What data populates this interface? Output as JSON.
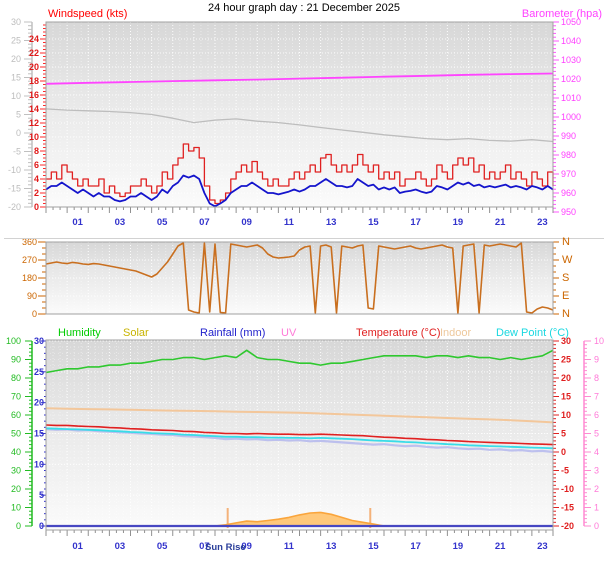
{
  "title": "24 hour graph day : 21 December 2025",
  "top_panel": {
    "left_label": "Windspeed (kts)",
    "right_label": "Barometer (hpa)"
  },
  "legend": {
    "items": [
      {
        "label": "Humidity",
        "color": "#00cc00"
      },
      {
        "label": "Solar",
        "color": "#c8b400"
      },
      {
        "label": "Rainfall (mm)",
        "color": "#2222cc"
      },
      {
        "label": "UV",
        "color": "#ff7ad8"
      },
      {
        "label": "Temperature (°C)",
        "color": "#e02020"
      },
      {
        "label": "Indoor",
        "color": "#eec89c"
      },
      {
        "label": "Dew Point (°C)",
        "color": "#1ad8e0"
      }
    ]
  },
  "chart_data": [
    {
      "id": "windspeed_barometer",
      "type": "line",
      "x_range": [
        0,
        24
      ],
      "x_tick_labels": [
        "01",
        "03",
        "05",
        "07",
        "09",
        "11",
        "13",
        "15",
        "17",
        "19",
        "21",
        "23"
      ],
      "axes": {
        "windspeed": {
          "title": "Windspeed (kts)",
          "min": 0,
          "max": 24,
          "major": 2,
          "minor": 0.5,
          "color": "#ff2828",
          "label_color": "#e01818"
        },
        "outer_left": {
          "title": "",
          "min": -20,
          "max": 30,
          "major": 5,
          "minor": 1,
          "color": "#c0c0c0",
          "label_color": "#bdbdbd"
        },
        "barometer": {
          "title": "Barometer (hpa)",
          "min": 950,
          "max": 1050,
          "major": 10,
          "minor": 2,
          "color": "#ff55ff",
          "label_color": "#ff40ff"
        }
      },
      "series": [
        {
          "name": "unlabeled_gray_line",
          "axis": "outer_left",
          "color": "#bdbdbd",
          "values": [
            6.5,
            6.2,
            6.0,
            5.8,
            5.5,
            5.0,
            4.0,
            2.8,
            3.5,
            3.8,
            3.2,
            2.8,
            2.2,
            1.5,
            0.8,
            0.2,
            -0.5,
            -1.0,
            -1.5,
            -1.8,
            -1.5,
            -2.0,
            -2.2,
            -1.8,
            -2.3
          ]
        },
        {
          "name": "barometer",
          "axis": "barometer",
          "color": "#ff44ff",
          "values": [
            1017.5,
            1018,
            1018.4,
            1018.9,
            1019.3,
            1019.7,
            1020.2,
            1020.7,
            1021.2,
            1021.7,
            1022.2,
            1022.6,
            1022.9
          ]
        },
        {
          "name": "wind_gust",
          "axis": "windspeed",
          "color": "#e02020",
          "style": "step",
          "values": [
            4,
            5,
            4,
            6,
            5,
            4,
            3,
            4,
            3,
            3,
            4,
            2,
            3,
            2,
            1.5,
            2,
            3,
            3,
            4,
            3,
            2,
            3,
            5,
            4,
            6,
            7,
            9,
            8,
            8.5,
            7,
            3,
            1,
            0.5,
            1,
            2,
            4,
            5,
            6,
            5,
            6.5,
            5,
            4,
            3,
            4,
            3,
            3,
            4,
            5,
            4,
            5,
            6,
            5,
            7,
            7.5,
            6,
            5,
            6,
            5,
            6,
            7.5,
            6,
            5,
            6,
            4,
            5,
            4,
            5,
            3,
            4,
            4,
            5,
            4,
            3,
            4,
            6,
            5,
            4,
            6,
            7,
            6,
            7,
            5,
            6,
            4,
            5,
            4,
            5,
            6,
            4,
            5,
            4,
            3,
            5,
            4,
            3,
            5,
            3
          ]
        },
        {
          "name": "wind_average",
          "axis": "windspeed",
          "color": "#1414cc",
          "values": [
            2.5,
            3,
            3,
            3.5,
            3,
            2.5,
            2,
            2.5,
            2,
            1.5,
            2,
            1.5,
            1.5,
            1,
            0.8,
            1,
            1.5,
            1.5,
            2,
            1.5,
            1,
            1.5,
            2.5,
            2,
            3,
            3.5,
            4.5,
            4.2,
            4.5,
            4,
            2,
            0.5,
            0.1,
            0.5,
            1,
            2,
            2.5,
            3,
            3,
            3.5,
            3,
            2.5,
            2,
            2,
            1.8,
            2,
            2.2,
            2.5,
            2.2,
            2.5,
            3,
            3,
            3.5,
            4,
            3.5,
            3,
            3,
            2.8,
            3,
            4,
            3.5,
            3,
            3.2,
            2.5,
            2.8,
            2.5,
            2.8,
            2,
            2.2,
            2.3,
            2.5,
            2.2,
            2,
            2.2,
            3,
            2.8,
            2.5,
            3,
            3.5,
            3.2,
            3.5,
            3,
            3.2,
            2.8,
            3,
            2.8,
            3,
            3.2,
            2.8,
            3,
            2.8,
            2.5,
            3,
            2.8,
            2.5,
            3,
            2.5
          ]
        }
      ]
    },
    {
      "id": "wind_direction",
      "type": "line",
      "x_range": [
        0,
        24
      ],
      "axes": {
        "degrees": {
          "min": 0,
          "max": 360,
          "major": 90,
          "minor": 30,
          "color": "#cc6600",
          "label_color": "#cc6600"
        }
      },
      "compass_labels": [
        "N",
        "W",
        "S",
        "E",
        "N"
      ],
      "series": [
        {
          "name": "wind_direction",
          "axis": "degrees",
          "color": "#c96f1f",
          "values": [
            250,
            255,
            260,
            255,
            252,
            258,
            255,
            250,
            248,
            252,
            250,
            245,
            240,
            235,
            230,
            225,
            220,
            215,
            205,
            195,
            185,
            200,
            230,
            260,
            300,
            340,
            355,
            20,
            10,
            5,
            355,
            10,
            350,
            8,
            5,
            350,
            345,
            340,
            335,
            340,
            345,
            330,
            300,
            285,
            280,
            282,
            285,
            290,
            320,
            335,
            340,
            5,
            340,
            345,
            335,
            5,
            340,
            335,
            330,
            340,
            345,
            30,
            25,
            340,
            335,
            330,
            325,
            330,
            335,
            340,
            330,
            325,
            330,
            335,
            340,
            345,
            335,
            330,
            5,
            340,
            345,
            350,
            5,
            345,
            340,
            345,
            350,
            345,
            340,
            335,
            355,
            10,
            5,
            25,
            35,
            30,
            20
          ]
        }
      ]
    },
    {
      "id": "temperature_humidity",
      "type": "line",
      "x_range": [
        0,
        24
      ],
      "x_tick_labels": [
        "01",
        "03",
        "05",
        "07",
        "09",
        "11",
        "13",
        "15",
        "17",
        "19",
        "21",
        "23"
      ],
      "axes": {
        "humidity": {
          "title": "Humidity",
          "min": 0,
          "max": 100,
          "major": 10,
          "minor": 2,
          "color": "#22bb22",
          "label_color": "#22bb22"
        },
        "rain": {
          "title": "Rainfall (mm)",
          "min": 0,
          "max": 30,
          "major": 5,
          "minor": 1,
          "color": "#3030cc",
          "label_color": "#3030cc"
        },
        "temp": {
          "title": "Temperature (°C)",
          "min": -20,
          "max": 30,
          "major": 5,
          "minor": 1,
          "color": "#e02020",
          "label_color": "#e02020"
        },
        "uv": {
          "title": "UV",
          "min": 0,
          "max": 10,
          "major": 1,
          "minor": 0.2,
          "color": "#ff8ad2",
          "label_color": "#ff7ad8"
        }
      },
      "series": [
        {
          "name": "solar",
          "axis": "rain",
          "color": "#faa53c",
          "fill": "#ffc87a",
          "style": "area",
          "values": [
            0,
            0,
            0,
            0,
            0,
            0,
            0,
            0,
            0,
            0,
            0,
            0,
            0,
            0,
            0,
            0,
            0,
            0.2,
            0.5,
            0.8,
            0.7,
            0.9,
            1.1,
            1.4,
            1.8,
            2.1,
            2.2,
            1.9,
            1.4,
            0.9,
            0.6,
            0.3,
            0,
            0,
            0,
            0,
            0,
            0,
            0,
            0,
            0,
            0,
            0,
            0,
            0,
            0,
            0,
            0,
            0
          ]
        },
        {
          "name": "rainfall",
          "axis": "rain",
          "color": "#4747c2",
          "values": [
            0,
            0
          ]
        },
        {
          "name": "unlabeled_lavender_line",
          "axis": "temp",
          "color": "#b0b4ee",
          "values": [
            6.2,
            6.0,
            6.1,
            5.8,
            5.9,
            5.6,
            5.5,
            5.3,
            5.2,
            5.0,
            4.9,
            4.7,
            4.6,
            4.3,
            4.2,
            4.0,
            3.8,
            3.5,
            3.6,
            3.4,
            3.5,
            3.2,
            3.3,
            3.1,
            3.2,
            2.9,
            3.0,
            2.8,
            2.6,
            2.4,
            2.2,
            2.0,
            2.1,
            1.8,
            1.6,
            1.7,
            1.4,
            1.2,
            1.3,
            1.0,
            0.8,
            0.9,
            0.6,
            0.7,
            0.4,
            0.5,
            0.2,
            0.3,
            0.0
          ]
        },
        {
          "name": "dew_point",
          "axis": "temp",
          "color": "#38dce8",
          "values": [
            6.4,
            6.3,
            6.2,
            6.1,
            6.0,
            5.9,
            5.7,
            5.6,
            5.4,
            5.3,
            5.1,
            5.0,
            4.9,
            4.7,
            4.6,
            4.4,
            4.3,
            4.1,
            4.1,
            4.0,
            4.0,
            3.9,
            3.9,
            3.8,
            3.8,
            3.7,
            3.8,
            3.7,
            3.6,
            3.5,
            3.3,
            3.1,
            3.0,
            2.9,
            2.7,
            2.6,
            2.4,
            2.3,
            2.1,
            2.0,
            1.8,
            1.7,
            1.6,
            1.5,
            1.4,
            1.3,
            1.2,
            1.1,
            1.0
          ]
        },
        {
          "name": "temperature",
          "axis": "temp",
          "color": "#e02020",
          "values": [
            7.3,
            7.2,
            7.2,
            7.0,
            6.9,
            6.8,
            6.6,
            6.5,
            6.3,
            6.2,
            6.0,
            5.9,
            5.8,
            5.6,
            5.5,
            5.3,
            5.2,
            5.0,
            5.0,
            4.9,
            5.0,
            4.9,
            4.8,
            4.8,
            4.7,
            4.7,
            4.8,
            4.7,
            4.6,
            4.5,
            4.4,
            4.2,
            4.0,
            3.9,
            3.7,
            3.6,
            3.4,
            3.3,
            3.1,
            3.0,
            2.8,
            2.7,
            2.6,
            2.5,
            2.4,
            2.3,
            2.2,
            2.1,
            2.0
          ]
        },
        {
          "name": "indoor",
          "axis": "temp",
          "color": "#f3c79b",
          "values": [
            11.8,
            11.7,
            11.6,
            11.5,
            11.4,
            11.3,
            11.2,
            11.1,
            11.0,
            10.9,
            10.8,
            10.7,
            10.6,
            10.4,
            10.2,
            10.0,
            9.8,
            9.6,
            9.4,
            9.2,
            9.0,
            8.8,
            8.6,
            8.3,
            8.0
          ]
        },
        {
          "name": "humidity",
          "axis": "humidity",
          "color": "#2fc82f",
          "values": [
            83,
            84,
            85,
            85,
            86,
            86,
            87,
            87,
            88,
            88,
            89,
            90,
            90,
            91,
            91,
            90,
            91,
            92,
            91,
            95,
            91,
            90,
            90,
            89,
            88,
            88,
            87,
            88,
            88,
            89,
            90,
            91,
            92,
            92,
            92,
            92,
            91,
            92,
            92,
            91,
            92,
            91,
            91,
            90,
            91,
            90,
            91,
            92,
            95
          ]
        }
      ],
      "markers": {
        "sunrise_hour": 8.6,
        "sunset_hour": 15.35,
        "color": "#f4b27a",
        "label": "Sun Rise"
      }
    }
  ]
}
